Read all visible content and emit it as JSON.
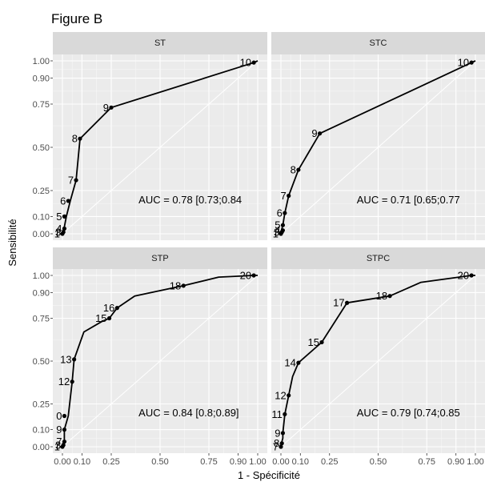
{
  "figure_title": "Figure B",
  "chart_data": {
    "type": "line",
    "title": "Figure B",
    "xlabel": "1 - Spécificité",
    "ylabel": "Sensibilité",
    "xlim": [
      0,
      1
    ],
    "ylim": [
      0,
      1
    ],
    "xticks": [
      0.0,
      0.1,
      0.25,
      0.5,
      0.75,
      0.9,
      1.0
    ],
    "xtick_labels": [
      "0.00",
      "0.10",
      "0.25",
      "0.50",
      "0.75",
      "0.90",
      "1.00"
    ],
    "yticks": [
      0.0,
      0.1,
      0.25,
      0.5,
      0.75,
      0.9,
      1.0
    ],
    "ytick_labels": [
      "0.00",
      "0.10",
      "0.25",
      "0.50",
      "0.75",
      "0.90",
      "1.00"
    ],
    "grid": true,
    "diagonal_reference": true,
    "panels": [
      {
        "strip": "ST",
        "auc": "AUC = 0.78 [0.73;0.84",
        "curve": {
          "x": [
            0,
            0,
            0.01,
            0.02,
            0.04,
            0.07,
            0.09,
            0.25,
            0.98,
            1.0
          ],
          "y": [
            0,
            0.01,
            0.04,
            0.1,
            0.19,
            0.31,
            0.55,
            0.73,
            0.99,
            1.0
          ]
        },
        "points": [
          {
            "label": "1",
            "x": 0,
            "y": 0
          },
          {
            "label": "3",
            "x": 0.005,
            "y": 0.01
          },
          {
            "label": "4",
            "x": 0.01,
            "y": 0.03
          },
          {
            "label": "5",
            "x": 0.01,
            "y": 0.1
          },
          {
            "label": "6",
            "x": 0.03,
            "y": 0.19
          },
          {
            "label": "7",
            "x": 0.07,
            "y": 0.31
          },
          {
            "label": "8",
            "x": 0.09,
            "y": 0.55
          },
          {
            "label": "9",
            "x": 0.25,
            "y": 0.73
          },
          {
            "label": "10",
            "x": 0.98,
            "y": 0.99
          }
        ]
      },
      {
        "strip": "STC",
        "auc": "AUC = 0.71 [0.65;0.77",
        "curve": {
          "x": [
            0,
            0,
            0.01,
            0.02,
            0.04,
            0.09,
            0.2,
            0.98,
            1.0
          ],
          "y": [
            0,
            0.01,
            0.05,
            0.12,
            0.22,
            0.37,
            0.58,
            0.99,
            1.0
          ]
        },
        "points": [
          {
            "label": "1",
            "x": 0,
            "y": 0
          },
          {
            "label": "3",
            "x": 0.005,
            "y": 0.01
          },
          {
            "label": "4",
            "x": 0.01,
            "y": 0.02
          },
          {
            "label": "5",
            "x": 0.01,
            "y": 0.05
          },
          {
            "label": "6",
            "x": 0.02,
            "y": 0.12
          },
          {
            "label": "7",
            "x": 0.04,
            "y": 0.22
          },
          {
            "label": "8",
            "x": 0.09,
            "y": 0.37
          },
          {
            "label": "9",
            "x": 0.2,
            "y": 0.58
          },
          {
            "label": "10",
            "x": 0.98,
            "y": 0.99
          }
        ]
      },
      {
        "strip": "STP",
        "auc": "AUC = 0.84 [0.8;0.89]",
        "curve": {
          "x": [
            0,
            0,
            0.01,
            0.01,
            0.03,
            0.05,
            0.06,
            0.11,
            0.2,
            0.24,
            0.28,
            0.37,
            0.62,
            0.8,
            0.98,
            1.0
          ],
          "y": [
            0,
            0.01,
            0.04,
            0.1,
            0.18,
            0.38,
            0.51,
            0.67,
            0.73,
            0.75,
            0.81,
            0.88,
            0.94,
            0.99,
            1.0,
            1.0
          ]
        },
        "points": [
          {
            "label": "1",
            "x": 0,
            "y": 0
          },
          {
            "label": "3",
            "x": 0.005,
            "y": 0.01
          },
          {
            "label": "7",
            "x": 0.01,
            "y": 0.03
          },
          {
            "label": "9",
            "x": 0.01,
            "y": 0.1
          },
          {
            "label": "0",
            "x": 0.01,
            "y": 0.18
          },
          {
            "label": "12",
            "x": 0.05,
            "y": 0.38
          },
          {
            "label": "13",
            "x": 0.06,
            "y": 0.51
          },
          {
            "label": "15",
            "x": 0.24,
            "y": 0.75
          },
          {
            "label": "16",
            "x": 0.28,
            "y": 0.81
          },
          {
            "label": "18",
            "x": 0.62,
            "y": 0.94
          },
          {
            "label": "20",
            "x": 0.98,
            "y": 1.0
          }
        ]
      },
      {
        "strip": "STPC",
        "auc": "AUC = 0.79 [0.74;0.85",
        "curve": {
          "x": [
            0,
            0,
            0.01,
            0.01,
            0.02,
            0.04,
            0.06,
            0.09,
            0.21,
            0.34,
            0.56,
            0.72,
            0.98,
            1.0
          ],
          "y": [
            0,
            0.01,
            0.05,
            0.08,
            0.19,
            0.3,
            0.41,
            0.49,
            0.61,
            0.84,
            0.88,
            0.96,
            1.0,
            1.0
          ]
        },
        "points": [
          {
            "label": "7",
            "x": 0,
            "y": 0
          },
          {
            "label": "8",
            "x": 0.005,
            "y": 0.02
          },
          {
            "label": "9",
            "x": 0.01,
            "y": 0.08
          },
          {
            "label": "11",
            "x": 0.02,
            "y": 0.19
          },
          {
            "label": "12",
            "x": 0.04,
            "y": 0.3
          },
          {
            "label": "14",
            "x": 0.09,
            "y": 0.49
          },
          {
            "label": "15",
            "x": 0.21,
            "y": 0.61
          },
          {
            "label": "17",
            "x": 0.34,
            "y": 0.84
          },
          {
            "label": "18",
            "x": 0.56,
            "y": 0.88
          },
          {
            "label": "20",
            "x": 0.98,
            "y": 1.0
          }
        ]
      }
    ]
  }
}
